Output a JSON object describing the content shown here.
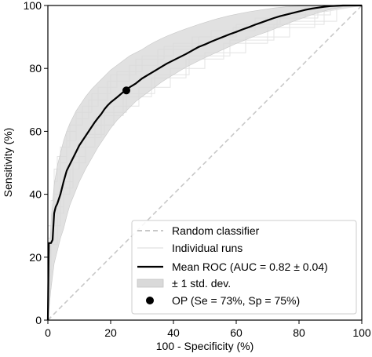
{
  "chart_data": {
    "type": "line",
    "xlabel": "100 - Specificity (%)",
    "ylabel": "Sensitivity (%)",
    "xlim": [
      0,
      100
    ],
    "ylim": [
      0,
      100
    ],
    "x_ticks": [
      0,
      20,
      40,
      60,
      80,
      100
    ],
    "y_ticks": [
      0,
      20,
      40,
      60,
      80,
      100
    ],
    "x_tick_labels": [
      "0",
      "20",
      "40",
      "60",
      "80",
      "100"
    ],
    "y_tick_labels": [
      "0",
      "20",
      "40",
      "60",
      "80",
      "100"
    ],
    "grid": false,
    "legend": {
      "position": "bottom-right",
      "entries": [
        {
          "label": "Random classifier",
          "style": "dashed-line",
          "color": "#c8c8c8"
        },
        {
          "label": "Individual runs",
          "style": "thin-line",
          "color": "#e6e6e6"
        },
        {
          "label": "Mean ROC (AUC = 0.82 ± 0.04)",
          "style": "solid-line",
          "color": "#000000"
        },
        {
          "label": "± 1 std. dev.",
          "style": "band",
          "color": "#d9d9d9"
        },
        {
          "label": "OP (Se = 73%, Sp = 75%)",
          "style": "marker",
          "color": "#000000"
        }
      ]
    },
    "series": [
      {
        "name": "Random classifier",
        "x": [
          0,
          100
        ],
        "y": [
          0,
          100
        ]
      },
      {
        "name": "Mean ROC (AUC = 0.82 ± 0.04)",
        "x": [
          0,
          0.3,
          0.5,
          1,
          1.5,
          2,
          2.5,
          3,
          4,
          5,
          6,
          7,
          8,
          9,
          10,
          11,
          12,
          13,
          14,
          15,
          16,
          17,
          18,
          19,
          20,
          22,
          24,
          25,
          26,
          28,
          30,
          32,
          34,
          36,
          38,
          40,
          42,
          44,
          46,
          48,
          50,
          52,
          54,
          56,
          58,
          60,
          62,
          64,
          66,
          68,
          70,
          72,
          74,
          76,
          78,
          80,
          82,
          84,
          86,
          88,
          90,
          92,
          94,
          96,
          98,
          100
        ],
        "y": [
          0,
          24.5,
          24.5,
          24.5,
          25.5,
          34,
          36,
          37,
          40,
          44,
          47.5,
          49.5,
          51.5,
          53.5,
          55.5,
          57,
          58.5,
          60,
          61.5,
          63,
          64.3,
          65.5,
          67,
          68.2,
          69.2,
          70.8,
          72.5,
          73,
          74,
          75.2,
          76.8,
          78,
          79.2,
          80.4,
          81.6,
          82.6,
          83.6,
          84.6,
          85.7,
          86.8,
          87.6,
          88.5,
          89.3,
          90.1,
          90.9,
          91.6,
          92.4,
          93.1,
          93.9,
          94.6,
          95.3,
          96,
          96.6,
          97.1,
          97.6,
          98.1,
          98.6,
          99,
          99.3,
          99.6,
          99.8,
          99.9,
          100,
          100,
          100,
          100
        ]
      },
      {
        "name": "± 1 std. dev.",
        "x": [
          0,
          1,
          2,
          3,
          4,
          5,
          6,
          7,
          8,
          9,
          10,
          12,
          14,
          16,
          18,
          20,
          22,
          24,
          26,
          28,
          30,
          32,
          34,
          36,
          38,
          40,
          42,
          44,
          46,
          48,
          50,
          52,
          54,
          56,
          58,
          60,
          62,
          64,
          66,
          68,
          70,
          72,
          74,
          76,
          78,
          80,
          82,
          84,
          86,
          88,
          90,
          92,
          94,
          96,
          98,
          100
        ],
        "upper": [
          12,
          31,
          43,
          49,
          53,
          57,
          60,
          62.5,
          64.5,
          66.5,
          68,
          71,
          73.5,
          75.5,
          77.5,
          79.5,
          81,
          82.5,
          84,
          85,
          86,
          87.3,
          88.4,
          89.4,
          90.3,
          91.1,
          91.9,
          92.6,
          93.3,
          94,
          94.6,
          95.2,
          95.8,
          96.3,
          96.8,
          97.2,
          97.6,
          98,
          98.3,
          98.6,
          98.9,
          99.2,
          99.4,
          99.6,
          99.7,
          99.8,
          99.9,
          100,
          100,
          100,
          100,
          100,
          100,
          100,
          100,
          100
        ],
        "lower": [
          0,
          10,
          18,
          22,
          26,
          29,
          33,
          36.5,
          39,
          41.5,
          44,
          48,
          51.5,
          55,
          58,
          61,
          63.5,
          65.5,
          67.5,
          69.5,
          71,
          72.5,
          74,
          75.5,
          76.8,
          78,
          79.2,
          80.4,
          81.4,
          82.4,
          83.4,
          84.3,
          85.2,
          86.1,
          87,
          87.9,
          88.7,
          89.5,
          90.3,
          91,
          91.7,
          92.5,
          93.3,
          94.1,
          94.9,
          95.6,
          96.3,
          97,
          97.6,
          98.2,
          98.8,
          99.2,
          99.6,
          99.8,
          100,
          100
        ]
      }
    ],
    "individual_runs": [
      {
        "x": [
          0,
          0,
          1,
          1,
          2,
          2,
          4,
          4,
          7,
          7,
          11,
          11,
          16,
          16,
          22,
          22,
          30,
          30,
          40,
          40,
          52,
          52,
          66,
          66,
          82,
          82,
          100
        ],
        "y": [
          0,
          20,
          20,
          38,
          38,
          48,
          48,
          55,
          55,
          62,
          62,
          68,
          68,
          74,
          74,
          79,
          79,
          84,
          84,
          88,
          88,
          92,
          92,
          96,
          96,
          99,
          100
        ]
      },
      {
        "x": [
          0,
          0,
          1,
          1,
          3,
          3,
          5,
          5,
          8,
          8,
          12,
          12,
          18,
          18,
          25,
          25,
          34,
          34,
          45,
          45,
          58,
          58,
          72,
          72,
          88,
          88,
          100
        ],
        "y": [
          0,
          10,
          10,
          24,
          24,
          36,
          36,
          44,
          44,
          52,
          52,
          59,
          59,
          66,
          66,
          72,
          72,
          78,
          78,
          84,
          84,
          89,
          89,
          94,
          94,
          98,
          100
        ]
      },
      {
        "x": [
          0,
          0,
          2,
          2,
          3,
          3,
          6,
          6,
          9,
          9,
          14,
          14,
          20,
          20,
          28,
          28,
          37,
          37,
          48,
          48,
          60,
          60,
          74,
          74,
          90,
          90,
          100
        ],
        "y": [
          0,
          30,
          30,
          44,
          44,
          52,
          52,
          60,
          60,
          66,
          66,
          72,
          72,
          78,
          78,
          83,
          83,
          87,
          87,
          90,
          90,
          94,
          94,
          97,
          97,
          99,
          100
        ]
      },
      {
        "x": [
          0,
          0,
          1,
          1,
          4,
          4,
          7,
          7,
          10,
          10,
          15,
          15,
          21,
          21,
          29,
          29,
          39,
          39,
          50,
          50,
          63,
          63,
          77,
          77,
          92,
          92,
          100
        ],
        "y": [
          0,
          16,
          16,
          30,
          30,
          40,
          40,
          48,
          48,
          55,
          55,
          62,
          62,
          68,
          68,
          74,
          74,
          80,
          80,
          85,
          85,
          90,
          90,
          95,
          95,
          99,
          100
        ]
      },
      {
        "x": [
          0,
          0,
          2,
          2,
          4,
          4,
          6,
          6,
          9,
          9,
          13,
          13,
          19,
          19,
          26,
          26,
          35,
          35,
          46,
          46,
          59,
          59,
          73,
          73,
          86,
          86,
          100
        ],
        "y": [
          0,
          26,
          26,
          40,
          40,
          50,
          50,
          57,
          57,
          64,
          64,
          70,
          70,
          76,
          76,
          81,
          81,
          86,
          86,
          90,
          90,
          93,
          93,
          96,
          96,
          99,
          100
        ]
      },
      {
        "x": [
          0,
          0,
          1,
          1,
          2,
          2,
          5,
          5,
          8,
          8,
          12,
          12,
          17,
          17,
          24,
          24,
          33,
          33,
          44,
          44,
          56,
          56,
          70,
          70,
          85,
          85,
          100
        ],
        "y": [
          0,
          14,
          14,
          26,
          26,
          34,
          34,
          42,
          42,
          50,
          50,
          58,
          58,
          65,
          65,
          71,
          71,
          77,
          77,
          83,
          83,
          88,
          88,
          93,
          93,
          98,
          100
        ]
      }
    ],
    "operating_point": {
      "label": "OP (Se = 73%, Sp = 75%)",
      "x": 25,
      "y": 73
    }
  }
}
